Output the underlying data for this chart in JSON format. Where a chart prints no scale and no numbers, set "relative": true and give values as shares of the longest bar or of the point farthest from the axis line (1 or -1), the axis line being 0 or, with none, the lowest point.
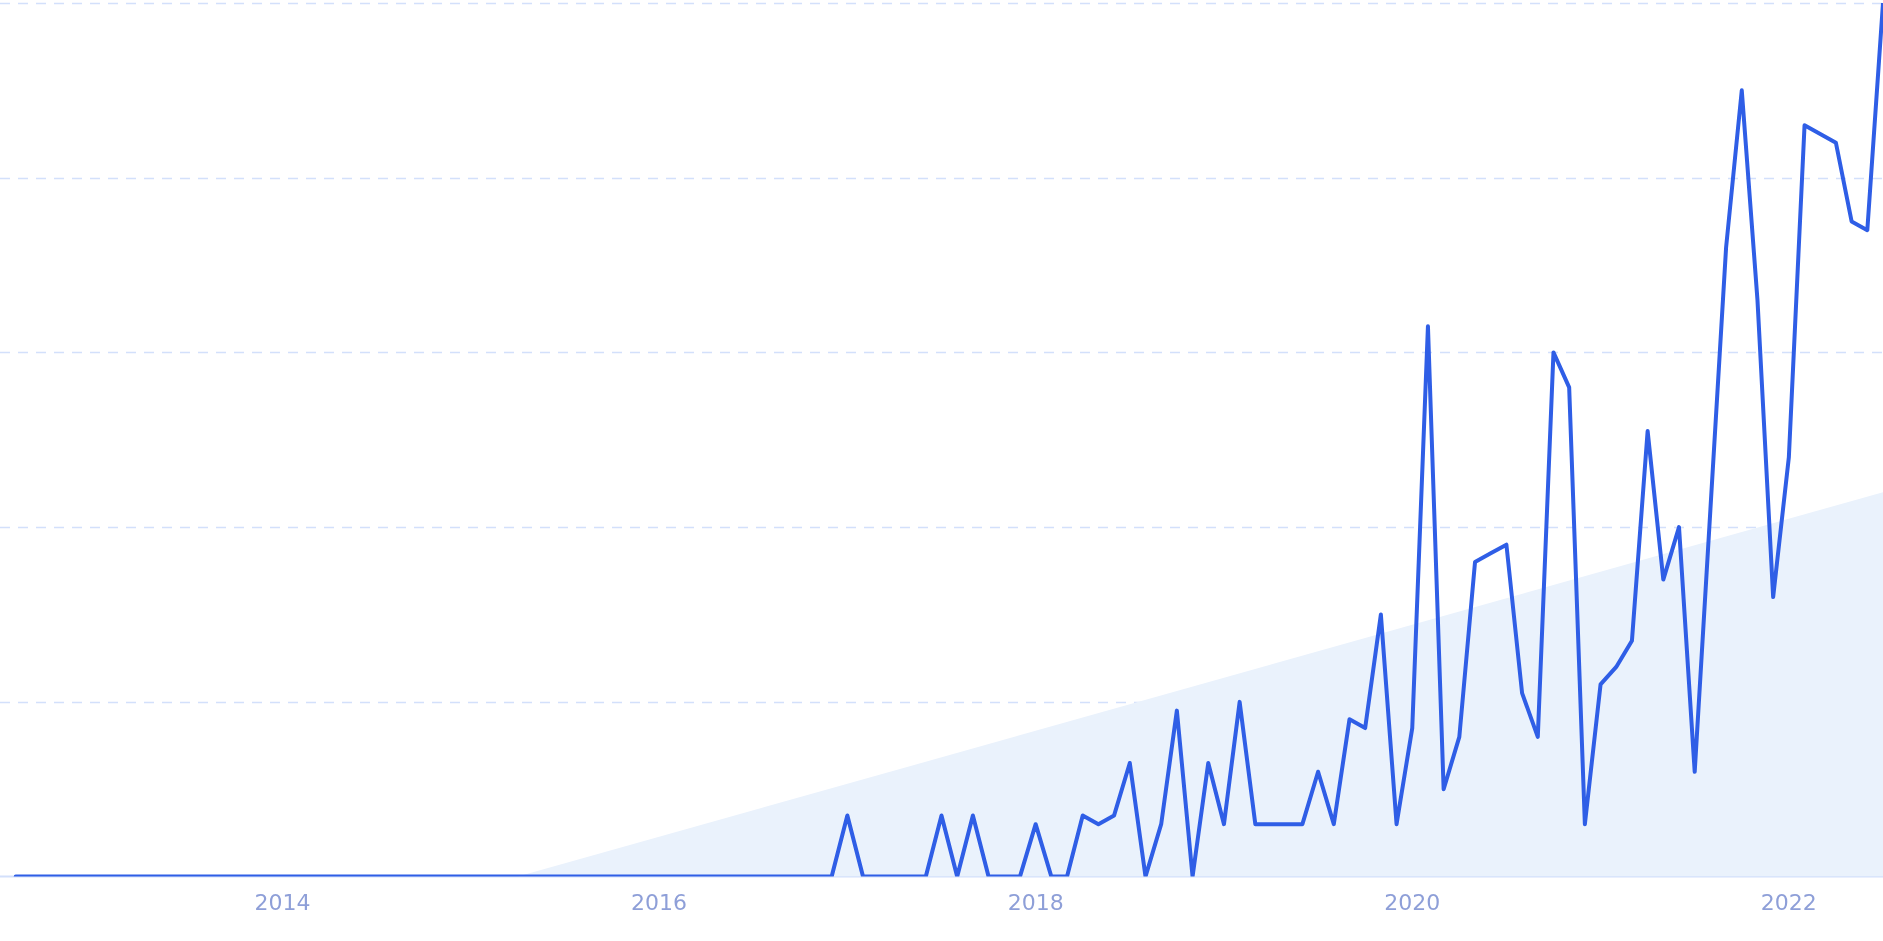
{
  "chart_data": {
    "type": "line",
    "relative": true,
    "grid": "y",
    "legend": false,
    "marker": "none",
    "xlim": [
      "2012-07",
      "2022-07"
    ],
    "xticks": [
      {
        "value": "2014",
        "label": "2014"
      },
      {
        "value": "2016",
        "label": "2016"
      },
      {
        "value": "2018",
        "label": "2018"
      },
      {
        "value": "2020",
        "label": "2020"
      },
      {
        "value": "2022",
        "label": "2022"
      }
    ],
    "series": [
      {
        "type": "area",
        "color": "#eaf2fc",
        "x": [
          "2015-04",
          "2022-07"
        ],
        "values": [
          0,
          0.44
        ]
      },
      {
        "color": "#2f5ee6",
        "line_style": "solid",
        "x": [
          "2012-08",
          "2016-12",
          "2017-01",
          "2017-02",
          "2017-06",
          "2017-07",
          "2017-08",
          "2017-09",
          "2017-10",
          "2017-12",
          "2018-01",
          "2018-02",
          "2018-03",
          "2018-04",
          "2018-05",
          "2018-06",
          "2018-07",
          "2018-08",
          "2018-09",
          "2018-10",
          "2018-11",
          "2018-12",
          "2019-01",
          "2019-02",
          "2019-03",
          "2019-06",
          "2019-07",
          "2019-08",
          "2019-09",
          "2019-10",
          "2019-11",
          "2019-12",
          "2020-01",
          "2020-02",
          "2020-03",
          "2020-04",
          "2020-05",
          "2020-06",
          "2020-07",
          "2020-08",
          "2020-09",
          "2020-10",
          "2020-11",
          "2020-12",
          "2021-01",
          "2021-02",
          "2021-03",
          "2021-04",
          "2021-05",
          "2021-06",
          "2021-07",
          "2021-08",
          "2021-09",
          "2021-10",
          "2021-11",
          "2021-12",
          "2022-01",
          "2022-02",
          "2022-03",
          "2022-04",
          "2022-05",
          "2022-06",
          "2022-07"
        ],
        "values": [
          0,
          0,
          0.07,
          0,
          0,
          0.07,
          0,
          0.07,
          0,
          0,
          0.06,
          0,
          0,
          0.07,
          0.06,
          0.07,
          0.13,
          0,
          0.06,
          0.19,
          0,
          0.13,
          0.06,
          0.2,
          0.06,
          0.06,
          0.12,
          0.06,
          0.18,
          0.17,
          0.3,
          0.06,
          0.17,
          0.63,
          0.1,
          0.16,
          0.36,
          0.37,
          0.38,
          0.21,
          0.16,
          0.6,
          0.56,
          0.06,
          0.22,
          0.24,
          0.27,
          0.51,
          0.34,
          0.4,
          0.12,
          0.42,
          0.72,
          0.9,
          0.66,
          0.32,
          0.48,
          0.86,
          0.85,
          0.84,
          0.75,
          0.74,
          1
        ]
      }
    ]
  }
}
